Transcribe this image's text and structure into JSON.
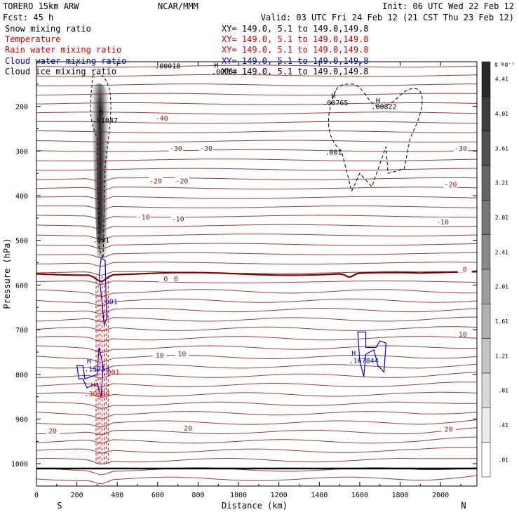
{
  "chart_data": {
    "type": "contour",
    "header": {
      "model": "TORERO  15km ARW",
      "center": "NCAR/MMM",
      "init": "Init: 06 UTC Wed 22 Feb 12",
      "fcst": "Fcst:   45 h",
      "valid": "Valid: 03 UTC Fri 24 Feb 12 (21 CST Thu 23 Feb 12)"
    },
    "legend": [
      {
        "label": "Snow mixing ratio",
        "xy": "XY= 149.0,  5.1 to 149.0,149.8",
        "color": "#000000"
      },
      {
        "label": "Temperature",
        "xy": "XY= 149.0,  5.1 to 149.0,149.8",
        "color": "#c00000"
      },
      {
        "label": "Rain water mixing ratio",
        "xy": "XY= 149.0,  5.1 to 149.0,149.8",
        "color": "#dd0000"
      },
      {
        "label": "Cloud water mixing ratio",
        "xy": "XY= 149.0,  5.1 to 149.0,149.8",
        "color": "#0000cc"
      },
      {
        "label": "Cloud ice mixing ratio",
        "xy": "XY= 149.0,  5.1 to 149.0,149.8",
        "color": "#000000"
      }
    ],
    "xlabel": "Distance (km)",
    "ylabel": "Pressure (hPa)",
    "x_ticks": [
      0,
      200,
      400,
      600,
      800,
      1000,
      1200,
      1400,
      1600,
      1800,
      2000
    ],
    "x_range": [
      0,
      2180
    ],
    "y_ticks": [
      200,
      300,
      400,
      500,
      600,
      700,
      800,
      900,
      1000
    ],
    "y_range": [
      100,
      1050
    ],
    "end_labels": {
      "left": "S",
      "right": "N"
    },
    "colorbar": {
      "unit": "g kg⁻¹",
      "ticks": [
        "4.41",
        "4.01",
        "3.61",
        "3.21",
        "2.81",
        "2.41",
        "2.01",
        "1.61",
        "1.21",
        ".81",
        ".41",
        ".01"
      ]
    },
    "isotherm_labels": [
      {
        "text": "-40",
        "x": 620,
        "p": 226
      },
      {
        "text": "-30",
        "x": 690,
        "p": 293
      },
      {
        "text": "-30",
        "x": 840,
        "p": 293
      },
      {
        "text": "-30",
        "x": 2100,
        "p": 293
      },
      {
        "text": "-20",
        "x": 590,
        "p": 366
      },
      {
        "text": "-20",
        "x": 720,
        "p": 366
      },
      {
        "text": "-20",
        "x": 2050,
        "p": 374
      },
      {
        "text": "-10",
        "x": 530,
        "p": 447
      },
      {
        "text": "-10",
        "x": 700,
        "p": 451
      },
      {
        "text": "-10",
        "x": 2010,
        "p": 458
      },
      {
        "text": "0",
        "x": 640,
        "p": 585
      },
      {
        "text": "0",
        "x": 690,
        "p": 585
      },
      {
        "text": "0",
        "x": 2120,
        "p": 564
      },
      {
        "text": "10",
        "x": 610,
        "p": 756
      },
      {
        "text": "10",
        "x": 720,
        "p": 753
      },
      {
        "text": "10",
        "x": 2110,
        "p": 709
      },
      {
        "text": "20",
        "x": 80,
        "p": 926
      },
      {
        "text": "20",
        "x": 750,
        "p": 920
      },
      {
        "text": "20",
        "x": 2040,
        "p": 922
      }
    ],
    "extrema_labels": [
      {
        "text": "H",
        "x": 320,
        "p": 212,
        "color": "#000000"
      },
      {
        "text": ".01847",
        "x": 340,
        "p": 230,
        "color": "#000000"
      },
      {
        "text": ".001",
        "x": 320,
        "p": 498,
        "color": "#000000"
      },
      {
        "text": ".001",
        "x": 360,
        "p": 636,
        "color": "#0000cc"
      },
      {
        "text": "H",
        "x": 260,
        "p": 770,
        "color": "#0000cc"
      },
      {
        "text": ".15753",
        "x": 300,
        "p": 787,
        "color": "#0000cc"
      },
      {
        "text": ".001",
        "x": 370,
        "p": 794,
        "color": "#dd0000"
      },
      {
        "text": "H",
        "x": 280,
        "p": 823,
        "color": "#dd0000"
      },
      {
        "text": ".30689",
        "x": 300,
        "p": 843,
        "color": "#dd0000"
      },
      {
        "text": "H",
        "x": 1470,
        "p": 175,
        "color": "#000000"
      },
      {
        "text": ".00765",
        "x": 1480,
        "p": 191,
        "color": "#000000"
      },
      {
        "text": "H",
        "x": 1690,
        "p": 186,
        "color": "#000000"
      },
      {
        "text": ".00822",
        "x": 1720,
        "p": 200,
        "color": "#000000"
      },
      {
        "text": ".001",
        "x": 1470,
        "p": 302,
        "color": "#000000"
      },
      {
        "text": "H",
        "x": 1570,
        "p": 752,
        "color": "#0000cc"
      },
      {
        "text": ".167844",
        "x": 1620,
        "p": 768,
        "color": "#0000cc"
      },
      {
        "text": ".00018",
        "x": 650,
        "p": 109,
        "color": "#000000"
      },
      {
        "text": "H",
        "x": 890,
        "p": 107,
        "color": "#000000"
      },
      {
        "text": ".00083",
        "x": 930,
        "p": 121,
        "color": "#000000"
      }
    ]
  }
}
